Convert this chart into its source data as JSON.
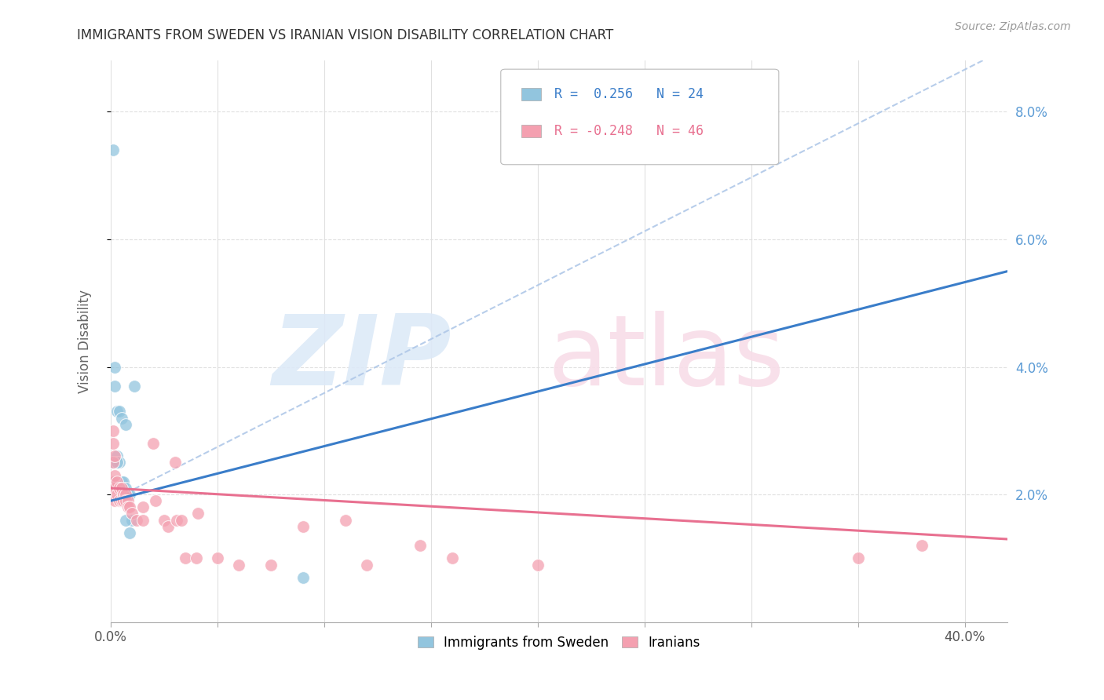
{
  "title": "IMMIGRANTS FROM SWEDEN VS IRANIAN VISION DISABILITY CORRELATION CHART",
  "source": "Source: ZipAtlas.com",
  "ylabel": "Vision Disability",
  "ylim": [
    0.0,
    0.088
  ],
  "xlim": [
    0.0,
    0.42
  ],
  "legend_r_sweden": "R =  0.256",
  "legend_n_sweden": "N = 24",
  "legend_r_iranian": "R = -0.248",
  "legend_n_iranian": "N = 46",
  "color_sweden": "#92c5de",
  "color_iranian": "#f4a0b0",
  "color_sweden_line": "#3a7dc9",
  "color_iranian_line": "#e87090",
  "color_dashed": "#b0c8e8",
  "background_color": "#ffffff",
  "grid_color": "#e0e0e0",
  "sweden_x": [
    0.001,
    0.001,
    0.002,
    0.002,
    0.003,
    0.003,
    0.004,
    0.004,
    0.005,
    0.005,
    0.006,
    0.007,
    0.007,
    0.008,
    0.009,
    0.01,
    0.001,
    0.002,
    0.003,
    0.004,
    0.007,
    0.009,
    0.011,
    0.09
  ],
  "sweden_y": [
    0.025,
    0.022,
    0.04,
    0.037,
    0.033,
    0.026,
    0.033,
    0.025,
    0.032,
    0.022,
    0.022,
    0.031,
    0.021,
    0.02,
    0.02,
    0.016,
    0.074,
    0.022,
    0.025,
    0.021,
    0.016,
    0.014,
    0.037,
    0.007
  ],
  "iranian_x": [
    0.001,
    0.001,
    0.001,
    0.001,
    0.002,
    0.002,
    0.002,
    0.002,
    0.003,
    0.003,
    0.004,
    0.004,
    0.005,
    0.005,
    0.006,
    0.006,
    0.007,
    0.007,
    0.008,
    0.008,
    0.009,
    0.01,
    0.012,
    0.015,
    0.015,
    0.02,
    0.021,
    0.025,
    0.027,
    0.03,
    0.031,
    0.033,
    0.035,
    0.04,
    0.041,
    0.05,
    0.06,
    0.075,
    0.09,
    0.11,
    0.12,
    0.145,
    0.16,
    0.2,
    0.35,
    0.38
  ],
  "iranian_y": [
    0.03,
    0.028,
    0.025,
    0.022,
    0.026,
    0.023,
    0.021,
    0.019,
    0.022,
    0.02,
    0.021,
    0.019,
    0.021,
    0.019,
    0.02,
    0.019,
    0.02,
    0.019,
    0.019,
    0.018,
    0.018,
    0.017,
    0.016,
    0.018,
    0.016,
    0.028,
    0.019,
    0.016,
    0.015,
    0.025,
    0.016,
    0.016,
    0.01,
    0.01,
    0.017,
    0.01,
    0.009,
    0.009,
    0.015,
    0.016,
    0.009,
    0.012,
    0.01,
    0.009,
    0.01,
    0.012
  ],
  "sweden_line_x": [
    0.0,
    0.42
  ],
  "sweden_line_y": [
    0.019,
    0.055
  ],
  "iranian_line_x": [
    0.0,
    0.42
  ],
  "iranian_line_y": [
    0.021,
    0.013
  ],
  "dashed_line_x": [
    0.0,
    0.42
  ],
  "dashed_line_y": [
    0.019,
    0.09
  ],
  "right_yticks": [
    0.02,
    0.04,
    0.06,
    0.08
  ],
  "right_yticklabels": [
    "2.0%",
    "4.0%",
    "6.0%",
    "8.0%"
  ]
}
